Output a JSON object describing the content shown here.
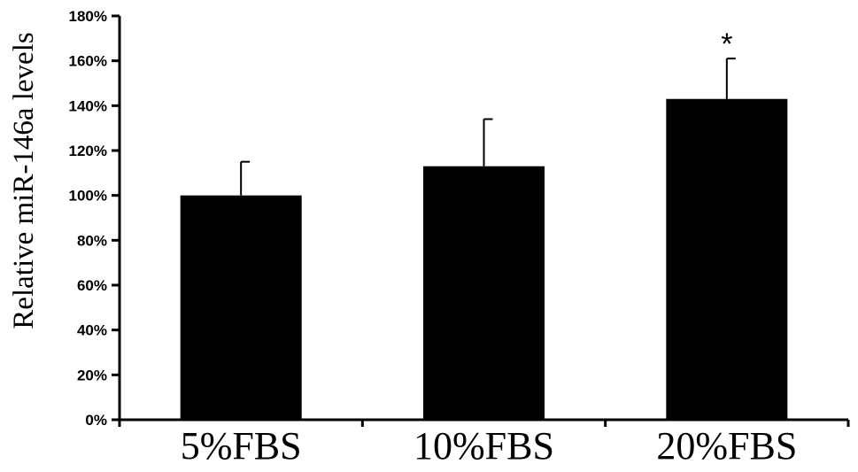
{
  "chart_data": {
    "type": "bar",
    "categories": [
      "5%FBS",
      "10%FBS",
      "20%FBS"
    ],
    "values": [
      100,
      113,
      143
    ],
    "error_bars": [
      15,
      21,
      18
    ],
    "annotations": [
      "",
      "",
      "*"
    ],
    "ylabel": "Relative miR-146a levels",
    "xlabel": "",
    "ylim": [
      0,
      180
    ],
    "yticks": [
      0,
      20,
      40,
      60,
      80,
      100,
      120,
      140,
      160,
      180
    ],
    "ytick_labels": [
      "0%",
      "20%",
      "40%",
      "60%",
      "80%",
      "100%",
      "120%",
      "140%",
      "160%",
      "180%"
    ],
    "grid": false,
    "bar_color": "#000000"
  }
}
